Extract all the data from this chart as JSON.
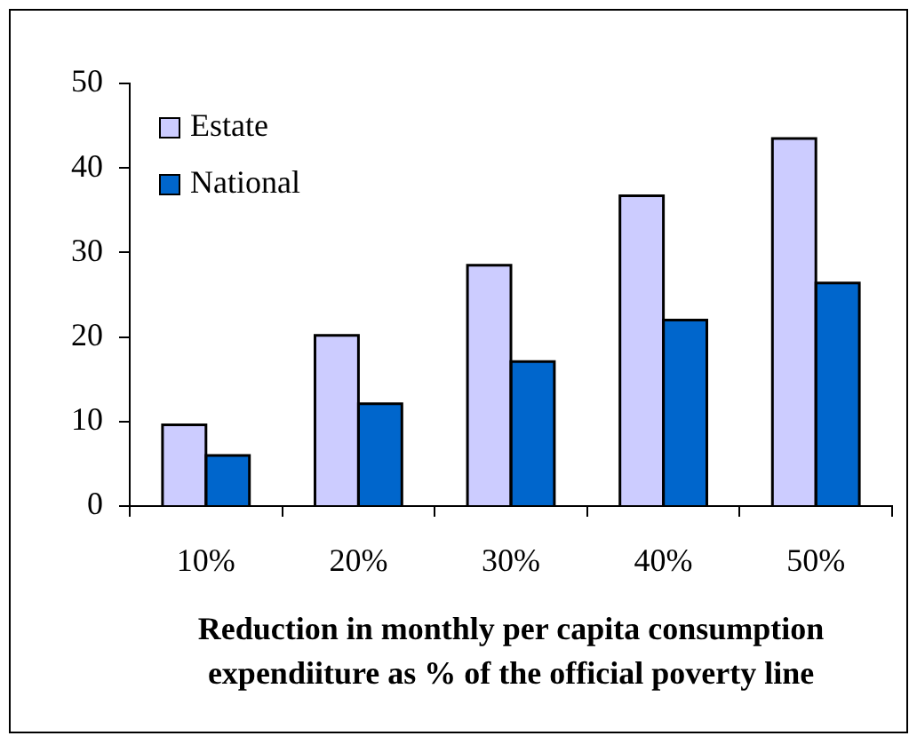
{
  "chart_data": {
    "type": "bar",
    "categories": [
      "10%",
      "20%",
      "30%",
      "40%",
      "50%"
    ],
    "series": [
      {
        "name": "Estate",
        "color": "#ccccff",
        "values": [
          9.6,
          20.2,
          28.5,
          36.7,
          43.5
        ]
      },
      {
        "name": "National",
        "color": "#0066cc",
        "values": [
          6.0,
          12.1,
          17.1,
          22.0,
          26.4
        ]
      }
    ],
    "xlabel": "Reduction in monthly per capita consumption expendiiture as % of the official poverty line",
    "ylim": [
      0,
      50
    ],
    "yticks": [
      0,
      10,
      20,
      30,
      40,
      50
    ],
    "legend": "top left"
  }
}
